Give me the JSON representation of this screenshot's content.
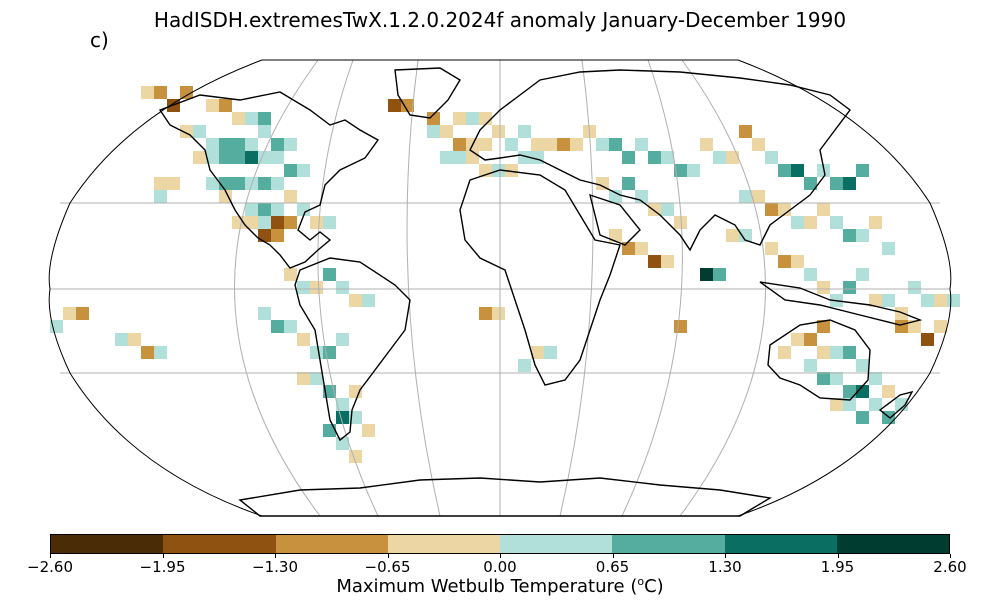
{
  "title": "HadISDH.extremesTwX.1.2.0.2024f anomaly January-December 1990",
  "panel_label": "c)",
  "colorbar": {
    "label": "Maximum Wetbulb Temperature (",
    "label_unit": "o",
    "label_suffix": "C)",
    "ticks": [
      "−2.60",
      "−1.95",
      "−1.30",
      "−0.65",
      "0.00",
      "0.65",
      "1.30",
      "1.95",
      "2.60"
    ],
    "colors": [
      "#4a2d07",
      "#8f5211",
      "#c8913d",
      "#ecd7a4",
      "#b0e0d9",
      "#55ad9f",
      "#0a6e62",
      "#003c30"
    ]
  },
  "land_outline_color": "#000000",
  "graticule_color": "#b0b0b0"
}
